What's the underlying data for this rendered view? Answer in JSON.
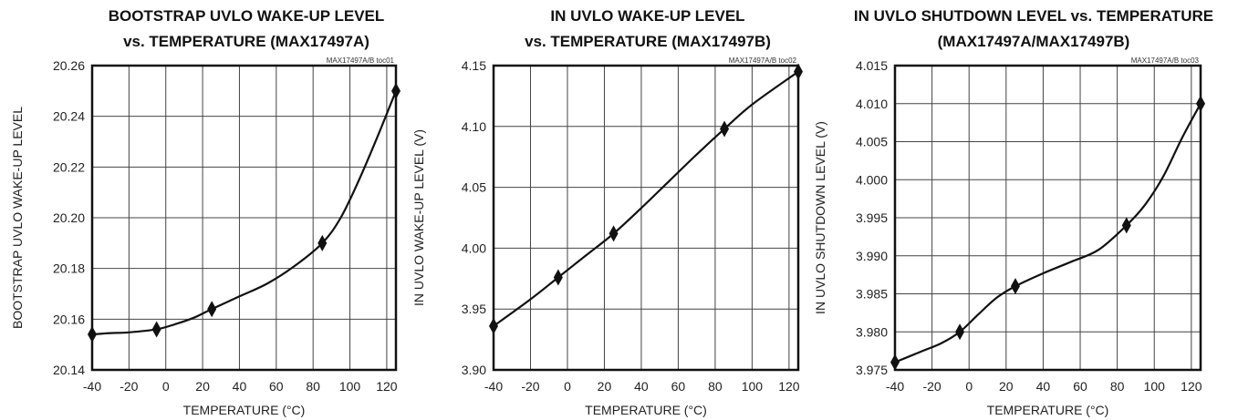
{
  "chart_data": [
    {
      "type": "line",
      "title": "BOOTSTRAP UVLO WAKE-UP LEVEL",
      "subtitle": "vs. TEMPERATURE (MAX17497A)",
      "tag": "MAX17497A/B toc01",
      "xlabel": "TEMPERATURE (°C)",
      "ylabel": "BOOTSTRAP UVLO WAKE-UP LEVEL",
      "xlim": [
        -40,
        125
      ],
      "ylim": [
        20.14,
        20.26
      ],
      "xticks": [
        -40,
        -20,
        0,
        20,
        40,
        60,
        80,
        100,
        120
      ],
      "yticks": [
        20.14,
        20.16,
        20.18,
        20.2,
        20.22,
        20.24,
        20.26
      ],
      "ytick_labels": [
        "20.14",
        "20.16",
        "20.18",
        "20.20",
        "20.22",
        "20.24",
        "20.26"
      ],
      "grid": true,
      "curve": [
        [
          -40,
          20.154
        ],
        [
          -30,
          20.1545
        ],
        [
          -20,
          20.1548
        ],
        [
          -5,
          20.156
        ],
        [
          5,
          20.158
        ],
        [
          15,
          20.1605
        ],
        [
          25,
          20.164
        ],
        [
          40,
          20.169
        ],
        [
          55,
          20.174
        ],
        [
          70,
          20.181
        ],
        [
          85,
          20.19
        ],
        [
          95,
          20.2
        ],
        [
          105,
          20.215
        ],
        [
          115,
          20.232
        ],
        [
          125,
          20.25
        ]
      ],
      "markers": [
        [
          -40,
          20.154
        ],
        [
          -5,
          20.156
        ],
        [
          25,
          20.164
        ],
        [
          85,
          20.19
        ],
        [
          125,
          20.25
        ]
      ]
    },
    {
      "type": "line",
      "title": "IN UVLO WAKE-UP LEVEL",
      "subtitle": "vs. TEMPERATURE (MAX17497B)",
      "tag": "MAX17497A/B toc02",
      "xlabel": "TEMPERATURE (°C)",
      "ylabel": "IN UVLO WAKE-UP LEVEL (V)",
      "xlim": [
        -40,
        125
      ],
      "ylim": [
        3.9,
        4.15
      ],
      "xticks": [
        -40,
        -20,
        0,
        20,
        40,
        60,
        80,
        100,
        120
      ],
      "yticks": [
        3.9,
        3.95,
        4.0,
        4.05,
        4.1,
        4.15
      ],
      "ytick_labels": [
        "3.90",
        "3.95",
        "4.00",
        "4.05",
        "4.10",
        "4.15"
      ],
      "grid": true,
      "curve": [
        [
          -40,
          3.936
        ],
        [
          -20,
          3.958
        ],
        [
          -5,
          3.976
        ],
        [
          10,
          3.994
        ],
        [
          25,
          4.012
        ],
        [
          40,
          4.033
        ],
        [
          55,
          4.055
        ],
        [
          70,
          4.077
        ],
        [
          85,
          4.098
        ],
        [
          100,
          4.118
        ],
        [
          125,
          4.145
        ]
      ],
      "markers": [
        [
          -40,
          3.936
        ],
        [
          -5,
          3.976
        ],
        [
          25,
          4.012
        ],
        [
          85,
          4.098
        ],
        [
          125,
          4.145
        ]
      ]
    },
    {
      "type": "line",
      "title": "IN UVLO SHUTDOWN LEVEL vs. TEMPERATURE",
      "subtitle": "(MAX17497A/MAX17497B)",
      "tag": "MAX17497A/B toc03",
      "xlabel": "TEMPERATURE (°C)",
      "ylabel": "IN UVLO SHUTDOWN LEVEL (V)",
      "xlim": [
        -40,
        125
      ],
      "ylim": [
        3.975,
        4.015
      ],
      "xticks": [
        -40,
        -20,
        0,
        20,
        40,
        60,
        80,
        100,
        120
      ],
      "yticks": [
        3.975,
        3.98,
        3.985,
        3.99,
        3.995,
        4.0,
        4.005,
        4.01,
        4.015
      ],
      "ytick_labels": [
        "3.975",
        "3.980",
        "3.985",
        "3.990",
        "3.995",
        "4.000",
        "4.005",
        "4.010",
        "4.015"
      ],
      "grid": true,
      "curve": [
        [
          -40,
          3.976
        ],
        [
          -25,
          3.9775
        ],
        [
          -15,
          3.9785
        ],
        [
          -5,
          3.98
        ],
        [
          5,
          3.9823
        ],
        [
          15,
          3.9845
        ],
        [
          25,
          3.986
        ],
        [
          40,
          3.9877
        ],
        [
          55,
          3.9892
        ],
        [
          70,
          3.9908
        ],
        [
          85,
          3.994
        ],
        [
          95,
          3.9967
        ],
        [
          105,
          4.0005
        ],
        [
          115,
          4.0055
        ],
        [
          125,
          4.01
        ]
      ],
      "markers": [
        [
          -40,
          3.976
        ],
        [
          -5,
          3.98
        ],
        [
          25,
          3.986
        ],
        [
          85,
          3.994
        ],
        [
          125,
          4.01
        ]
      ]
    }
  ]
}
